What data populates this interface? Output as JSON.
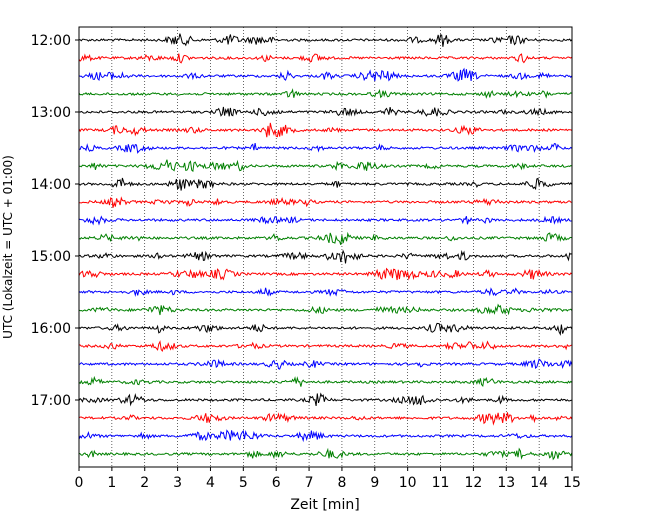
{
  "chart_data": {
    "type": "line",
    "title": "",
    "xlabel": "Zeit  [min]",
    "ylabel": "UTC (Lokalzeit = UTC + 01:00)",
    "xlim": [
      0,
      15
    ],
    "x_ticks": [
      "0",
      "1",
      "2",
      "3",
      "4",
      "5",
      "6",
      "7",
      "8",
      "9",
      "10",
      "11",
      "12",
      "13",
      "14",
      "15"
    ],
    "y_ticks": [
      "12:00",
      "13:00",
      "14:00",
      "15:00",
      "16:00",
      "17:00"
    ],
    "grid": "vertical dotted at each minute",
    "trace_interval_min": 15,
    "traces_start": "12:00",
    "trace_count": 24,
    "trace_colors": [
      "#000000",
      "#ff0000",
      "#0000ff",
      "#008000"
    ],
    "series": [
      {
        "start": "12:00"
      },
      {
        "start": "12:15"
      },
      {
        "start": "12:30"
      },
      {
        "start": "12:45"
      },
      {
        "start": "13:00"
      },
      {
        "start": "13:15"
      },
      {
        "start": "13:30"
      },
      {
        "start": "13:45"
      },
      {
        "start": "14:00"
      },
      {
        "start": "14:15"
      },
      {
        "start": "14:30"
      },
      {
        "start": "14:45"
      },
      {
        "start": "15:00"
      },
      {
        "start": "15:15"
      },
      {
        "start": "15:30"
      },
      {
        "start": "15:45"
      },
      {
        "start": "16:00"
      },
      {
        "start": "16:15"
      },
      {
        "start": "16:30"
      },
      {
        "start": "16:45"
      },
      {
        "start": "17:00"
      },
      {
        "start": "17:15"
      },
      {
        "start": "17:30"
      },
      {
        "start": "17:45"
      }
    ]
  }
}
